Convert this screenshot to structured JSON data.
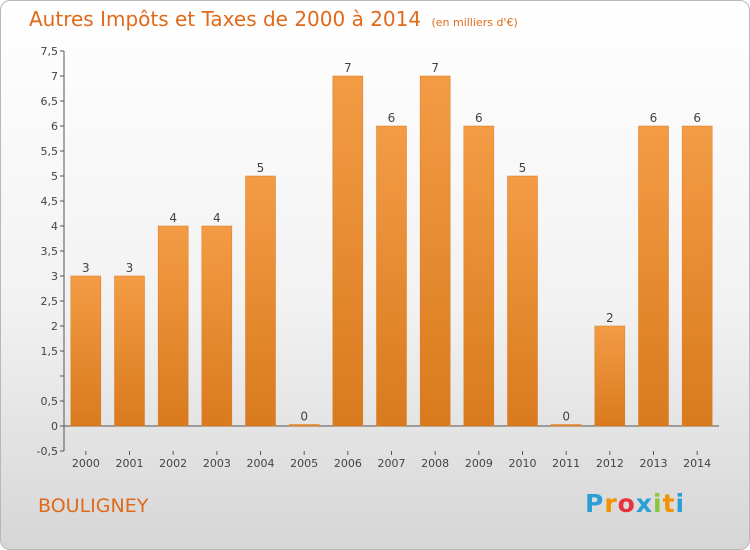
{
  "chart": {
    "title": "Autres Impôts et Taxes de 2000 à 2014",
    "unit": "(en milliers d'€)",
    "place": "BOULIGNEY",
    "logo": {
      "letters": [
        "P",
        "r",
        "o",
        "x",
        "i",
        "t",
        "i"
      ],
      "colors": [
        "#2a9fd6",
        "#f39200",
        "#e6323e",
        "#2a9fd6",
        "#8cc63f",
        "#f39200",
        "#2a9fd6"
      ]
    }
  },
  "chart_data": {
    "type": "bar",
    "title": "Autres Impôts et Taxes de 2000 à 2014",
    "xlabel": "",
    "ylabel": "",
    "categories": [
      "2000",
      "2001",
      "2002",
      "2003",
      "2004",
      "2005",
      "2006",
      "2007",
      "2008",
      "2009",
      "2010",
      "2011",
      "2012",
      "2013",
      "2014"
    ],
    "values": [
      3,
      3,
      4,
      4,
      5,
      0,
      7,
      6,
      7,
      6,
      5,
      0,
      2,
      6,
      6
    ],
    "value_labels": [
      "3",
      "3",
      "4",
      "4",
      "5",
      "0",
      "7",
      "6",
      "7",
      "6",
      "5",
      "0",
      "2",
      "6",
      "6"
    ],
    "ylim": [
      -0.5,
      7.5
    ],
    "y_ticks": [
      -0.5,
      0,
      0.5,
      1,
      1.5,
      2,
      2.5,
      3,
      3.5,
      4,
      4.5,
      5,
      5.5,
      6,
      6.5,
      7,
      7.5
    ],
    "y_tick_labels": [
      "-0,5",
      "0",
      "0,5",
      "",
      "1,5",
      "2",
      "2,5",
      "3",
      "3,5",
      "4",
      "4,5",
      "5",
      "5,5",
      "6",
      "6,5",
      "7",
      "7,5"
    ],
    "grid": false,
    "bar_color": "#f39c45",
    "bar_color_dark": "#d97a1e",
    "text_color": "#e06a1a"
  }
}
